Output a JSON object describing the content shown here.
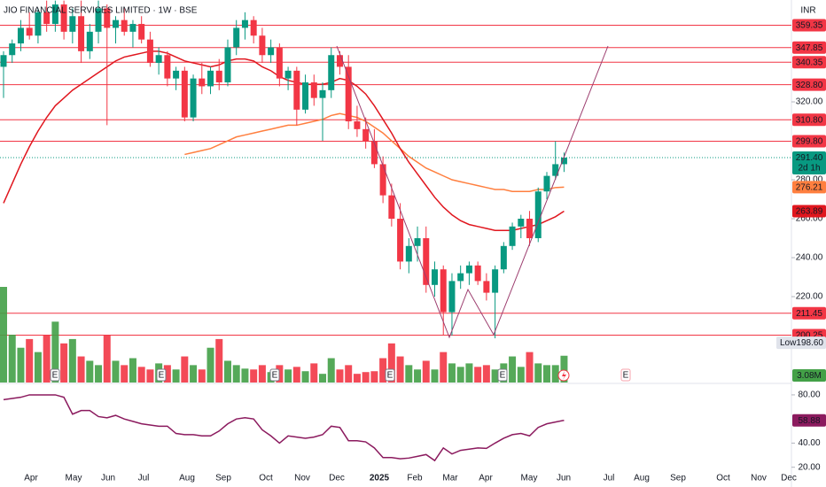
{
  "chart_data": {
    "type": "candlestick",
    "title": "JIO FINANCIAL SERVICES LIMITED · 1W · BSE",
    "currency": "INR",
    "open": [
      338,
      344,
      350,
      358,
      354,
      366,
      360,
      370,
      356,
      364,
      346,
      356,
      368,
      358,
      362,
      356,
      360,
      352,
      340,
      344,
      332,
      336,
      312,
      332,
      328,
      336,
      330,
      348,
      358,
      362,
      354,
      344,
      348,
      332,
      336,
      316,
      330,
      322,
      326,
      344,
      338,
      310,
      306,
      300,
      288,
      272,
      260,
      238,
      246,
      250,
      226,
      234,
      212,
      228,
      232,
      236,
      228,
      222,
      234,
      246,
      256,
      260,
      250,
      274,
      282,
      288
    ],
    "high": [
      346,
      352,
      362,
      366,
      368,
      372,
      372,
      372,
      368,
      372,
      360,
      372,
      370,
      364,
      368,
      362,
      364,
      356,
      348,
      346,
      338,
      338,
      334,
      340,
      338,
      342,
      352,
      362,
      366,
      364,
      358,
      352,
      350,
      338,
      338,
      334,
      334,
      330,
      348,
      346,
      344,
      318,
      312,
      306,
      292,
      278,
      268,
      250,
      256,
      256,
      238,
      236,
      232,
      236,
      238,
      238,
      232,
      236,
      248,
      258,
      262,
      264,
      276,
      284,
      299.8,
      294
    ],
    "low": [
      322,
      340,
      346,
      352,
      350,
      356,
      356,
      352,
      350,
      340,
      342,
      350,
      308,
      350,
      354,
      348,
      350,
      338,
      334,
      328,
      326,
      310,
      310,
      324,
      324,
      326,
      328,
      344,
      352,
      350,
      340,
      340,
      328,
      326,
      308,
      314,
      318,
      300,
      322,
      334,
      306,
      302,
      296,
      286,
      268,
      256,
      234,
      232,
      238,
      222,
      220,
      200,
      200,
      224,
      226,
      226,
      218,
      198.6,
      232,
      244,
      250,
      246,
      248,
      270,
      280,
      284
    ],
    "close": [
      344,
      350,
      358,
      354,
      366,
      360,
      370,
      356,
      364,
      346,
      356,
      368,
      358,
      362,
      356,
      360,
      352,
      340,
      344,
      332,
      336,
      312,
      332,
      328,
      336,
      330,
      348,
      358,
      362,
      354,
      344,
      348,
      332,
      336,
      316,
      330,
      322,
      326,
      344,
      338,
      310,
      306,
      300,
      288,
      272,
      260,
      238,
      246,
      250,
      226,
      234,
      212,
      228,
      232,
      236,
      228,
      222,
      234,
      246,
      256,
      260,
      250,
      274,
      282,
      288,
      291.4
    ],
    "last_label": "291.40",
    "countdown": "2d 1h",
    "volume": [
      11000000,
      5500000,
      4000000,
      5000000,
      3500000,
      5500000,
      7000000,
      4500000,
      5000000,
      3000000,
      2500000,
      2000000,
      5500000,
      2500000,
      2000000,
      2800000,
      1800000,
      1500000,
      2200000,
      2000000,
      1500000,
      3000000,
      2000000,
      1500000,
      4000000,
      5000000,
      2500000,
      2000000,
      1600000,
      1500000,
      2000000,
      1200000,
      2000000,
      1500000,
      1800000,
      1300000,
      2200000,
      1000000,
      2800000,
      1500000,
      2000000,
      1000000,
      1200000,
      1300000,
      2800000,
      4500000,
      3000000,
      2000000,
      1500000,
      2500000,
      1500000,
      3500000,
      2200000,
      1800000,
      2200000,
      1800000,
      2000000,
      1500000,
      2200000,
      3000000,
      1800000,
      3500000,
      2200000,
      2000000,
      2000000,
      3080000
    ],
    "volume_label": "3.08M",
    "volume_ylim": [
      0,
      44000000
    ],
    "series": [
      {
        "color": "#ff7f3f",
        "values": [
          null,
          null,
          null,
          null,
          null,
          null,
          null,
          null,
          null,
          null,
          null,
          null,
          null,
          null,
          null,
          null,
          null,
          null,
          null,
          null,
          null,
          293,
          294,
          295,
          296,
          298,
          300,
          302,
          303,
          304,
          305,
          306,
          307,
          308,
          308,
          309,
          310,
          311,
          313,
          314,
          313,
          312,
          310,
          307,
          304,
          300,
          296,
          292,
          289,
          286,
          284,
          282,
          280,
          279,
          278,
          277,
          276,
          275,
          275,
          274,
          274,
          274,
          275,
          275,
          276,
          276.21
        ]
      },
      {
        "color": "#e0161e",
        "values": [
          268,
          278,
          288,
          297,
          305,
          312,
          318,
          322,
          326,
          329,
          332,
          335,
          338,
          341,
          343,
          344,
          345,
          346,
          346,
          345,
          343,
          341,
          340,
          339,
          338,
          339,
          341,
          342,
          342,
          341,
          338,
          336,
          333,
          331,
          330,
          329,
          329,
          329,
          330,
          332,
          331,
          328,
          324,
          318,
          311,
          304,
          296,
          289,
          283,
          277,
          271,
          266,
          262,
          259,
          257,
          256,
          255,
          254,
          254,
          254,
          255,
          256,
          257,
          259,
          261,
          263.89
        ]
      }
    ],
    "levels": [
      359.35,
      347.85,
      340.35,
      {
        "value": 328.8,
        "label": "328.80"
      },
      {
        "value": 310.8,
        "label": "310.80"
      },
      {
        "value": 299.8,
        "label": "299.80"
      },
      211.45,
      200.25
    ],
    "level_color": "#f23645",
    "low_text": "Low",
    "low_value": {
      "value": 198.6,
      "label": "198.60"
    },
    "ylim": [
      175.9,
      372.3
    ],
    "yticks": [
      {
        "value": 220,
        "label": "220.00"
      },
      {
        "value": 240,
        "label": "240.00"
      },
      {
        "value": 260,
        "label": "260.00"
      },
      {
        "value": 280,
        "label": "280.00"
      },
      {
        "value": 320,
        "label": "320.00"
      }
    ],
    "up_color": "#089981",
    "down_color": "#f23645",
    "rsi": {
      "color": "#8b1a5e",
      "values": [
        76,
        77,
        78,
        80,
        80,
        80,
        80,
        78,
        64,
        67,
        67,
        62,
        61,
        63,
        60,
        58,
        56,
        55,
        54,
        54,
        48,
        47,
        47,
        46,
        46,
        50,
        56,
        60,
        61,
        60,
        51,
        46,
        40,
        46,
        45,
        44,
        45,
        47,
        54,
        53,
        42,
        42,
        41,
        36,
        28,
        28,
        27,
        27.6,
        29,
        30.5,
        25.5,
        36,
        31,
        34,
        35,
        36,
        35.6,
        40,
        44,
        47,
        48,
        46,
        53,
        56,
        57.5,
        58.88
      ],
      "ylim": [
        3.6,
        89.5
      ],
      "yticks": [
        {
          "value": 20,
          "label": "20.00"
        },
        {
          "value": 40,
          "label": "40.00"
        },
        {
          "value": 80,
          "label": "80.00"
        }
      ]
    },
    "earnings_label": "E",
    "months": [
      "Apr",
      "May",
      "Jun",
      "Jul",
      "Aug",
      "Sep",
      "Oct",
      "Nov",
      "Dec",
      "2025",
      "Feb",
      "Mar",
      "Apr",
      "May",
      "Jun",
      "Jul",
      "Aug",
      "Sep",
      "Oct",
      "Nov",
      "Dec"
    ]
  }
}
